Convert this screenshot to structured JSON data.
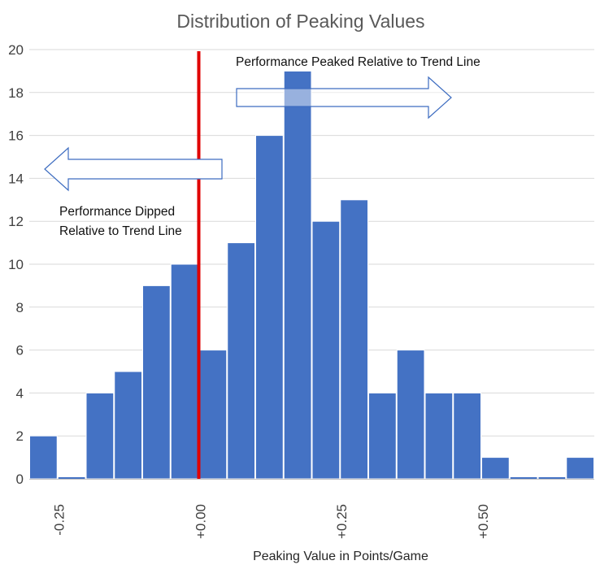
{
  "chart_data": {
    "type": "bar",
    "title": "Distribution of Peaking Values",
    "xlabel": "Peaking Value in Points/Game",
    "ylabel": "",
    "ylim": [
      0,
      20
    ],
    "y_ticks": [
      0,
      2,
      4,
      6,
      8,
      10,
      12,
      14,
      16,
      18,
      20
    ],
    "grid": "horizontal",
    "bin_width": 0.05,
    "bin_start": -0.3,
    "values": [
      2,
      0,
      4,
      5,
      9,
      10,
      6,
      11,
      16,
      19,
      12,
      13,
      4,
      6,
      4,
      4,
      1,
      0,
      0,
      1
    ],
    "x_tick_labels": [
      "-0.25",
      "+0.00",
      "+0.25",
      "+0.50"
    ],
    "x_tick_values": [
      -0.25,
      0.0,
      0.25,
      0.5
    ],
    "bar_color": "#4472C4",
    "reference_line": {
      "x": 0.0,
      "color": "#E00000"
    },
    "annotations": {
      "peaked": "Performance Peaked Relative to Trend Line",
      "dipped_line1": "Performance Dipped",
      "dipped_line2": "Relative to Trend Line"
    }
  }
}
